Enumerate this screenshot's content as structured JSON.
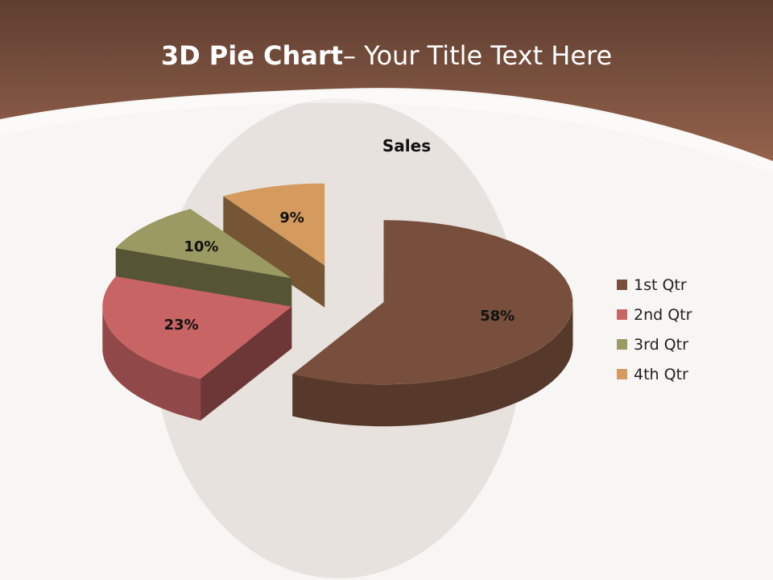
{
  "slide": {
    "title_bold": "3D Pie Chart",
    "title_rest": "– Your Title Text Here"
  },
  "colors": {
    "header": "#8a5a45",
    "background": "#f8f6f4"
  },
  "chart_data": {
    "type": "pie",
    "style": "3d-exploded",
    "title": "Sales",
    "categories": [
      "1st Qtr",
      "2nd Qtr",
      "3rd Qtr",
      "4th Qtr"
    ],
    "values": [
      58,
      23,
      10,
      9
    ],
    "labels": [
      "58%",
      "23%",
      "10%",
      "9%"
    ],
    "colors": [
      "#774f3c",
      "#c86464",
      "#9a9a62",
      "#d49a5e"
    ],
    "legend_position": "right"
  }
}
